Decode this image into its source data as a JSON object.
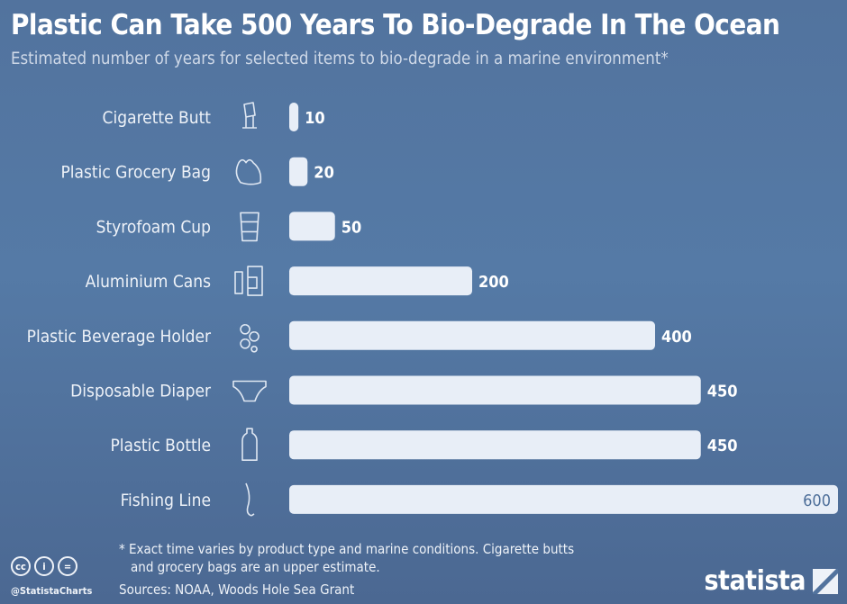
{
  "header": {
    "title": "Plastic Can Take 500 Years To Bio-Degrade In The Ocean",
    "subtitle": "Estimated number of years for selected items to bio-degrade in a marine environment*"
  },
  "chart_data": {
    "type": "bar",
    "orientation": "horizontal",
    "title": "Plastic Can Take 500 Years To Bio-Degrade In The Ocean",
    "categories": [
      "Cigarette Butt",
      "Plastic Grocery Bag",
      "Styrofoam Cup",
      "Aluminium Cans",
      "Plastic Beverage Holder",
      "Disposable Diaper",
      "Plastic Bottle",
      "Fishing Line"
    ],
    "values": [
      10,
      20,
      50,
      200,
      400,
      450,
      450,
      600
    ],
    "icons": [
      "cigarette-icon",
      "grocery-bag-icon",
      "cup-icon",
      "cans-icon",
      "beverage-holder-icon",
      "diaper-icon",
      "bottle-icon",
      "fishing-line-icon"
    ],
    "xlim": [
      0,
      600
    ],
    "grid": false,
    "bar_color": "#e8eef7",
    "background": "#52739e"
  },
  "footer": {
    "note_line1": "* Exact time varies by product type and marine conditions. Cigarette butts",
    "note_line2": "and grocery bags are an upper estimate.",
    "source": "Sources: NOAA, Woods Hole Sea Grant",
    "handle": "@StatistaCharts",
    "logo": "statista",
    "cc_icons": [
      "cc",
      "i",
      "="
    ]
  }
}
